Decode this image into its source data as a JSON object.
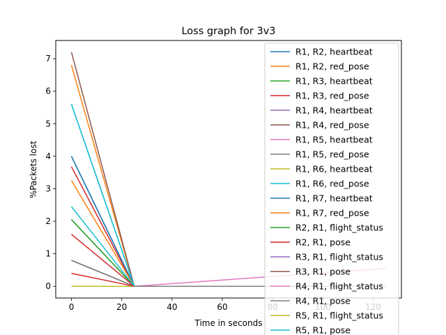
{
  "chart_data": {
    "type": "line",
    "title": "Loss graph for 3v3",
    "xlabel": "Time in seconds",
    "ylabel": "%Packets lost",
    "xlim": [
      -6.25,
      131.25
    ],
    "ylim": [
      -0.36,
      7.56
    ],
    "x_ticks": [
      0,
      20,
      40,
      60,
      80,
      100,
      120
    ],
    "y_ticks": [
      0,
      1,
      2,
      3,
      4,
      5,
      6,
      7
    ],
    "x": [
      0,
      25
    ],
    "grid": false,
    "legend_placement": "top-right",
    "series": [
      {
        "name": "R1, R2, heartbeat",
        "color": "#1f77b4",
        "values": [
          4.0,
          0
        ]
      },
      {
        "name": "R1, R2, red_pose",
        "color": "#ff7f0e",
        "values": [
          6.8,
          0
        ]
      },
      {
        "name": "R1, R3, heartbeat",
        "color": "#2ca02c",
        "values": [
          2.05,
          0
        ]
      },
      {
        "name": "R1, R3, red_pose",
        "color": "#d62728",
        "values": [
          3.68,
          0
        ]
      },
      {
        "name": "R1, R4, heartbeat",
        "color": "#9467bd",
        "values": [
          0,
          0
        ]
      },
      {
        "name": "R1, R4, red_pose",
        "color": "#8c564b",
        "values": [
          7.2,
          0
        ]
      },
      {
        "name": "R1, R5, heartbeat",
        "color": "#e377c2",
        "values": [
          0,
          0
        ]
      },
      {
        "name": "R1, R5, red_pose",
        "color": "#7f7f7f",
        "values": [
          0.8,
          0
        ]
      },
      {
        "name": "R1, R6, heartbeat",
        "color": "#bcbd22",
        "values": [
          0,
          0
        ]
      },
      {
        "name": "R1, R6, red_pose",
        "color": "#17becf",
        "values": [
          5.6,
          0
        ]
      },
      {
        "name": "R1, R7, heartbeat",
        "color": "#1f77b4",
        "values": [
          4.0,
          0
        ]
      },
      {
        "name": "R1, R7, red_pose",
        "color": "#ff7f0e",
        "values": [
          3.25,
          0
        ]
      },
      {
        "name": "R2, R1, flight_status",
        "color": "#2ca02c",
        "values": [
          2.05,
          0
        ]
      },
      {
        "name": "R2, R1, pose",
        "color": "#d62728",
        "values": [
          1.6,
          0
        ]
      },
      {
        "name": "R3, R1, flight_status",
        "color": "#9467bd",
        "values": [
          0,
          0
        ]
      },
      {
        "name": "R3, R1, pose",
        "color": "#8c564b",
        "values": [
          0.8,
          0
        ]
      },
      {
        "name": "R4, R1, flight_status",
        "color": "#e377c2",
        "values": [
          0,
          0
        ]
      },
      {
        "name": "R4, R1, pose",
        "color": "#7f7f7f",
        "values": [
          0.8,
          0
        ]
      },
      {
        "name": "R5, R1, flight_status",
        "color": "#bcbd22",
        "values": [
          0,
          0
        ]
      },
      {
        "name": "R5, R1, pose",
        "color": "#17becf",
        "values": [
          2.45,
          0
        ]
      },
      {
        "name": "",
        "color": "#d62728",
        "values": [
          0.4,
          0
        ]
      },
      {
        "name": "",
        "color": "#17becf",
        "values": [
          5.6,
          0
        ]
      }
    ],
    "extra_lines": [
      {
        "color": "#e377c2",
        "x": [
          25,
          125
        ],
        "y": [
          0,
          0.55
        ]
      },
      {
        "color": "#8c564b",
        "x": [
          25,
          125
        ],
        "y": [
          0,
          0
        ]
      },
      {
        "color": "#7f7f7f",
        "x": [
          25,
          125
        ],
        "y": [
          0,
          0
        ]
      }
    ]
  }
}
